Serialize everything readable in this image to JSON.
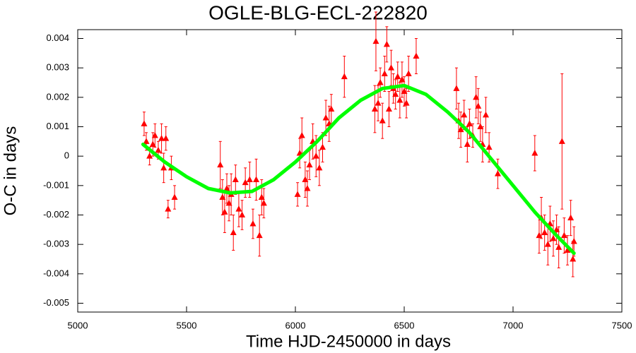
{
  "chart_data": {
    "type": "scatter",
    "title": "OGLE-BLG-ECL-222820",
    "xlabel": "Time HJD-2450000 in days",
    "ylabel": "O-C in days",
    "xlim": [
      5000,
      7500
    ],
    "ylim": [
      -0.0053,
      0.0043
    ],
    "xticks": [
      5000,
      5500,
      6000,
      6500,
      7000,
      7500
    ],
    "yticks": [
      0.004,
      0.003,
      0.002,
      0.001,
      0,
      -0.001,
      -0.002,
      -0.003,
      -0.004,
      -0.005
    ],
    "grid": false,
    "series": [
      {
        "type": "scatter",
        "color": "#ff0000",
        "x": [
          5305,
          5315,
          5330,
          5345,
          5355,
          5370,
          5385,
          5395,
          5405,
          5415,
          5430,
          5445,
          5655,
          5665,
          5675,
          5685,
          5695,
          5705,
          5715,
          5725,
          5740,
          5755,
          5770,
          5790,
          5805,
          5820,
          5835,
          5845,
          5855,
          6010,
          6020,
          6030,
          6045,
          6055,
          6065,
          6080,
          6095,
          6110,
          6125,
          6140,
          6155,
          6165,
          6225,
          6365,
          6370,
          6380,
          6390,
          6400,
          6410,
          6420,
          6430,
          6440,
          6450,
          6460,
          6470,
          6480,
          6490,
          6500,
          6510,
          6520,
          6555,
          6740,
          6750,
          6760,
          6775,
          6790,
          6800,
          6815,
          6830,
          6840,
          6850,
          6860,
          6875,
          6890,
          6930,
          7100,
          7120,
          7130,
          7145,
          7160,
          7170,
          7185,
          7200,
          7210,
          7225,
          7235,
          7250,
          7265,
          7275,
          7280
        ],
        "values": [
          0.0011,
          0.0005,
          0.0,
          0.0004,
          0.0007,
          0.0002,
          0.0006,
          -0.0004,
          0.0006,
          -0.0018,
          -0.0004,
          -0.0014,
          -0.0003,
          -0.0014,
          -0.0019,
          -0.0011,
          -0.0016,
          -0.0013,
          -0.0026,
          -0.0008,
          -0.0018,
          -0.002,
          -0.0009,
          -0.0008,
          -0.0023,
          -0.0008,
          -0.0027,
          -0.0014,
          -0.0016,
          -0.0013,
          0.0001,
          0.0007,
          -0.0008,
          -0.0011,
          -0.0003,
          0.0005,
          0.0,
          -0.0004,
          0.0003,
          0.0013,
          0.0011,
          0.0016,
          0.0027,
          0.0016,
          0.0039,
          0.0018,
          0.0025,
          0.0012,
          0.0028,
          0.0038,
          0.0016,
          0.003,
          0.0023,
          0.0021,
          0.0027,
          0.0019,
          0.0026,
          0.0022,
          0.0018,
          0.0028,
          0.0034,
          0.0023,
          0.0012,
          0.0009,
          0.0014,
          0.0004,
          0.0011,
          0.0007,
          0.002,
          0.0017,
          0.001,
          0.0004,
          0.0014,
          0.0003,
          -0.0006,
          0.0001,
          -0.0027,
          -0.0021,
          -0.0026,
          -0.003,
          -0.0023,
          -0.0028,
          -0.0025,
          -0.0031,
          0.0005,
          -0.0027,
          -0.0032,
          -0.0021,
          -0.0035,
          -0.0029
        ],
        "errors": [
          0.0004,
          0.0003,
          0.0003,
          0.0004,
          0.0004,
          0.0003,
          0.0005,
          0.0005,
          0.0004,
          0.0003,
          0.0004,
          0.0004,
          0.0008,
          0.0006,
          0.0007,
          0.0005,
          0.0006,
          0.0007,
          0.0006,
          0.0005,
          0.0006,
          0.0005,
          0.0005,
          0.0006,
          0.0005,
          0.0007,
          0.0007,
          0.0006,
          0.0005,
          0.0004,
          0.0005,
          0.0006,
          0.0006,
          0.0006,
          0.0005,
          0.0006,
          0.0007,
          0.0006,
          0.0005,
          0.0006,
          0.0006,
          0.0005,
          0.0007,
          0.0008,
          0.001,
          0.0006,
          0.0005,
          0.0006,
          0.0006,
          0.0006,
          0.0006,
          0.0006,
          0.0005,
          0.0005,
          0.0005,
          0.0006,
          0.0006,
          0.0005,
          0.0005,
          0.0006,
          0.0006,
          0.0007,
          0.0006,
          0.0006,
          0.0005,
          0.0006,
          0.0005,
          0.0004,
          0.0007,
          0.0006,
          0.0005,
          0.0006,
          0.0006,
          0.0005,
          0.0005,
          0.0006,
          0.0006,
          0.0007,
          0.0006,
          0.0007,
          0.0006,
          0.0006,
          0.0005,
          0.0007,
          0.0023,
          0.0006,
          0.0005,
          0.0006,
          0.0006,
          0.0005
        ]
      },
      {
        "type": "line",
        "color": "#00ff00",
        "x": [
          5300,
          5400,
          5500,
          5600,
          5700,
          5800,
          5900,
          6000,
          6100,
          6200,
          6300,
          6400,
          6500,
          6600,
          6700,
          6800,
          6900,
          7000,
          7100,
          7200,
          7280
        ],
        "values": [
          0.0004,
          -0.0002,
          -0.0007,
          -0.0011,
          -0.00125,
          -0.0012,
          -0.0008,
          -0.0002,
          0.0005,
          0.0013,
          0.0019,
          0.0023,
          0.0024,
          0.0021,
          0.0015,
          0.0008,
          -0.0001,
          -0.001,
          -0.0019,
          -0.0027,
          -0.0033
        ]
      }
    ]
  }
}
